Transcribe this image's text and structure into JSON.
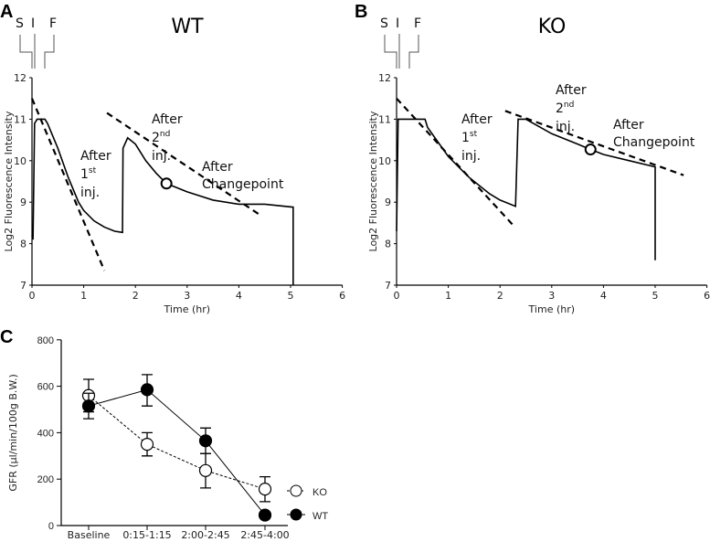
{
  "panels": {
    "a": "A",
    "b": "B",
    "c": "C"
  },
  "sif": {
    "s": "S",
    "i": "I",
    "f": "F"
  },
  "chart_data": [
    {
      "type": "line",
      "title": "WT",
      "xlabel": "Time (hr)",
      "ylabel": "Log2 Fluorescence Intensity",
      "xlim": [
        0,
        6
      ],
      "ylim": [
        7,
        12
      ],
      "xticks": [
        "0",
        "1",
        "2",
        "3",
        "4",
        "5",
        "6"
      ],
      "yticks": [
        "7",
        "8",
        "9",
        "10",
        "11",
        "12"
      ],
      "trace": [
        [
          0,
          8.2
        ],
        [
          0.02,
          8.1
        ],
        [
          0.05,
          10.9
        ],
        [
          0.1,
          11
        ],
        [
          0.25,
          11
        ],
        [
          0.3,
          10.9
        ],
        [
          0.5,
          10.3
        ],
        [
          0.7,
          9.6
        ],
        [
          0.9,
          9.0
        ],
        [
          1.0,
          8.8
        ],
        [
          1.2,
          8.55
        ],
        [
          1.4,
          8.4
        ],
        [
          1.6,
          8.3
        ],
        [
          1.75,
          8.27
        ],
        [
          1.76,
          10.3
        ],
        [
          1.85,
          10.55
        ],
        [
          2.0,
          10.4
        ],
        [
          2.2,
          10.0
        ],
        [
          2.4,
          9.7
        ],
        [
          2.6,
          9.45
        ],
        [
          3.0,
          9.25
        ],
        [
          3.5,
          9.05
        ],
        [
          4.0,
          8.95
        ],
        [
          4.5,
          8.95
        ],
        [
          5.05,
          8.88
        ],
        [
          5.05,
          7
        ]
      ],
      "fits": [
        [
          [
            0,
            11.5
          ],
          [
            1.4,
            7.35
          ]
        ],
        [
          [
            1.45,
            11.15
          ],
          [
            4.4,
            8.7
          ]
        ]
      ],
      "changepoint": [
        2.6,
        9.45
      ],
      "annotations": {
        "first": [
          "After",
          "1",
          "st",
          "inj."
        ],
        "second": [
          "After",
          "2",
          "nd",
          "inj."
        ],
        "change": [
          "After",
          "Changepoint"
        ]
      }
    },
    {
      "type": "line",
      "title": "KO",
      "xlabel": "Time (hr)",
      "ylabel": "Log2 Fluorescence Intensity",
      "xlim": [
        0,
        6
      ],
      "ylim": [
        7,
        12
      ],
      "xticks": [
        "0",
        "1",
        "2",
        "3",
        "4",
        "5",
        "6"
      ],
      "yticks": [
        "7",
        "8",
        "9",
        "10",
        "11",
        "12"
      ],
      "trace": [
        [
          0,
          8.3
        ],
        [
          0.03,
          11
        ],
        [
          0.55,
          11
        ],
        [
          0.6,
          10.8
        ],
        [
          1.0,
          10.1
        ],
        [
          1.4,
          9.6
        ],
        [
          1.8,
          9.2
        ],
        [
          2.0,
          9.05
        ],
        [
          2.3,
          8.9
        ],
        [
          2.35,
          11
        ],
        [
          2.5,
          11
        ],
        [
          3.0,
          10.65
        ],
        [
          3.5,
          10.4
        ],
        [
          3.75,
          10.27
        ],
        [
          4.0,
          10.15
        ],
        [
          4.5,
          10.0
        ],
        [
          5.0,
          9.85
        ],
        [
          5.0,
          7.6
        ]
      ],
      "fits": [
        [
          [
            0,
            11.5
          ],
          [
            2.25,
            8.45
          ]
        ],
        [
          [
            2.1,
            11.2
          ],
          [
            5.55,
            9.65
          ]
        ]
      ],
      "changepoint": [
        3.75,
        10.27
      ],
      "annotations": {
        "first": [
          "After",
          "1",
          "st",
          "inj."
        ],
        "second": [
          "After",
          "2",
          "nd",
          "inj."
        ],
        "change": [
          "After",
          "Changepoint"
        ]
      }
    },
    {
      "type": "line",
      "xlabel": "",
      "ylabel": "GFR  (µl/min/100g B.W.)",
      "ylim": [
        0,
        800
      ],
      "yticks": [
        "0",
        "200",
        "400",
        "600",
        "800"
      ],
      "categories": [
        "Baseline",
        "0:15-1:15",
        "2:00-2:45",
        "2:45-4:00"
      ],
      "series": [
        {
          "name": "KO",
          "marker": "open",
          "line": "dashed",
          "values": [
            560,
            350,
            237,
            157
          ],
          "err_low": [
            490,
            300,
            162,
            103
          ],
          "err_high": [
            630,
            400,
            310,
            210
          ]
        },
        {
          "name": "WT",
          "marker": "filled",
          "line": "solid",
          "values": [
            515,
            585,
            365,
            45
          ],
          "err_low": [
            460,
            515,
            310,
            45
          ],
          "err_high": [
            570,
            650,
            420,
            45
          ]
        }
      ],
      "legend": "right"
    }
  ]
}
